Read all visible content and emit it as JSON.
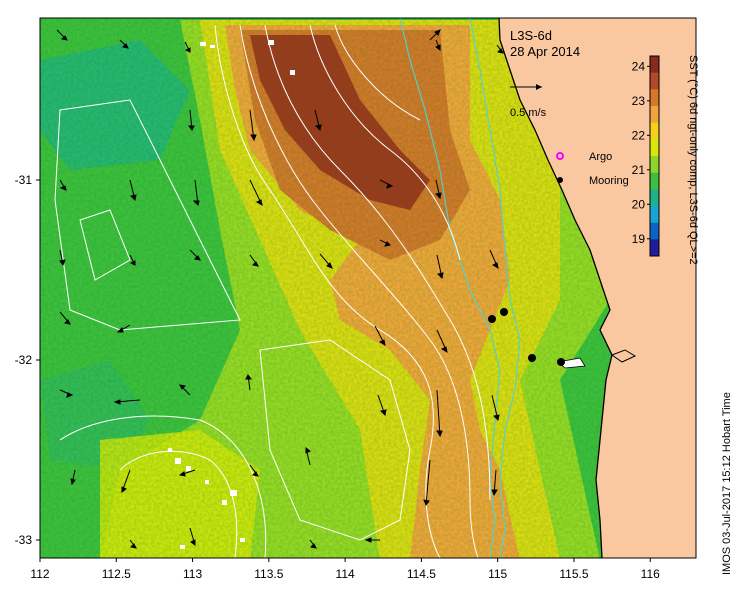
{
  "product": "L3S-6d",
  "date": "28 Apr 2014",
  "scale_arrow_label": "0.5 m/s",
  "legend": {
    "argo_label": "Argo",
    "mooring_label": "Mooring",
    "argo_color": "#ff00ff",
    "mooring_color": "#000000"
  },
  "colorbar": {
    "title": "SST (°C) 6d ngt-only comp, L3S-6d QL>=2",
    "ticks": [
      "24",
      "23",
      "22",
      "21",
      "20",
      "19"
    ],
    "range": [
      18.5,
      24.3
    ],
    "colors": [
      "#1e1e9a",
      "#0b63c8",
      "#15a6d6",
      "#1fb28a",
      "#3fbf3f",
      "#8fd62a",
      "#d8e80a",
      "#f5d21a",
      "#f0a53c",
      "#d4782c",
      "#b04a28",
      "#8a2a1f"
    ]
  },
  "credit": "IMOS 03-Jul-2017 15:12 Hobart Time",
  "axes": {
    "x_ticks": [
      "112",
      "112.5",
      "113",
      "113.5",
      "114",
      "114.5",
      "115",
      "115.5",
      "116"
    ],
    "y_ticks": [
      "-31",
      "-32",
      "-33"
    ],
    "lon_range": [
      112,
      116.3
    ],
    "lat_range": [
      -33.1,
      -30.1
    ]
  },
  "colors": {
    "land": "#fac8a0",
    "green": "#3fbf3f",
    "orange": "#f0a53c",
    "red": "#a0381f",
    "contour": "#ffffff",
    "bathymetry": "#4fd2d2"
  }
}
